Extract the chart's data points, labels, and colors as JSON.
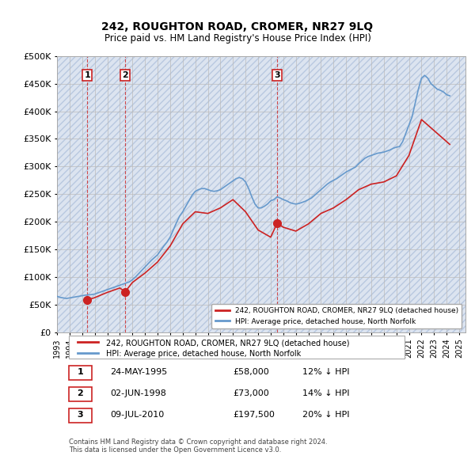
{
  "title": "242, ROUGHTON ROAD, CROMER, NR27 9LQ",
  "subtitle": "Price paid vs. HM Land Registry's House Price Index (HPI)",
  "ylabel_ticks": [
    "£0",
    "£50K",
    "£100K",
    "£150K",
    "£200K",
    "£250K",
    "£300K",
    "£350K",
    "£400K",
    "£450K",
    "£500K"
  ],
  "ytick_values": [
    0,
    50000,
    100000,
    150000,
    200000,
    250000,
    300000,
    350000,
    400000,
    450000,
    500000
  ],
  "xlim_start": 1993.0,
  "xlim_end": 2025.5,
  "ylim_min": 0,
  "ylim_max": 500000,
  "sale_points": [
    {
      "date_year": 1995.4,
      "price": 58000,
      "label": "1"
    },
    {
      "date_year": 1998.42,
      "price": 73000,
      "label": "2"
    },
    {
      "date_year": 2010.52,
      "price": 197500,
      "label": "3"
    }
  ],
  "hpi_line_color": "#6699cc",
  "sale_line_color": "#cc2222",
  "background_hatch_color": "#d0d8e8",
  "grid_color": "#bbbbbb",
  "legend_entry1": "242, ROUGHTON ROAD, CROMER, NR27 9LQ (detached house)",
  "legend_entry2": "HPI: Average price, detached house, North Norfolk",
  "table_data": [
    [
      "1",
      "24-MAY-1995",
      "£58,000",
      "12% ↓ HPI"
    ],
    [
      "2",
      "02-JUN-1998",
      "£73,000",
      "14% ↓ HPI"
    ],
    [
      "3",
      "09-JUL-2010",
      "£197,500",
      "20% ↓ HPI"
    ]
  ],
  "footer": "Contains HM Land Registry data © Crown copyright and database right 2024.\nThis data is licensed under the Open Government Licence v3.0.",
  "hpi_data": {
    "years": [
      1993.0,
      1993.25,
      1993.5,
      1993.75,
      1994.0,
      1994.25,
      1994.5,
      1994.75,
      1995.0,
      1995.25,
      1995.5,
      1995.75,
      1996.0,
      1996.25,
      1996.5,
      1996.75,
      1997.0,
      1997.25,
      1997.5,
      1997.75,
      1998.0,
      1998.25,
      1998.5,
      1998.75,
      1999.0,
      1999.25,
      1999.5,
      1999.75,
      2000.0,
      2000.25,
      2000.5,
      2000.75,
      2001.0,
      2001.25,
      2001.5,
      2001.75,
      2002.0,
      2002.25,
      2002.5,
      2002.75,
      2003.0,
      2003.25,
      2003.5,
      2003.75,
      2004.0,
      2004.25,
      2004.5,
      2004.75,
      2005.0,
      2005.25,
      2005.5,
      2005.75,
      2006.0,
      2006.25,
      2006.5,
      2006.75,
      2007.0,
      2007.25,
      2007.5,
      2007.75,
      2008.0,
      2008.25,
      2008.5,
      2008.75,
      2009.0,
      2009.25,
      2009.5,
      2009.75,
      2010.0,
      2010.25,
      2010.5,
      2010.75,
      2011.0,
      2011.25,
      2011.5,
      2011.75,
      2012.0,
      2012.25,
      2012.5,
      2012.75,
      2013.0,
      2013.25,
      2013.5,
      2013.75,
      2014.0,
      2014.25,
      2014.5,
      2014.75,
      2015.0,
      2015.25,
      2015.5,
      2015.75,
      2016.0,
      2016.25,
      2016.5,
      2016.75,
      2017.0,
      2017.25,
      2017.5,
      2017.75,
      2018.0,
      2018.25,
      2018.5,
      2018.75,
      2019.0,
      2019.25,
      2019.5,
      2019.75,
      2020.0,
      2020.25,
      2020.5,
      2020.75,
      2021.0,
      2021.25,
      2021.5,
      2021.75,
      2022.0,
      2022.25,
      2022.5,
      2022.75,
      2023.0,
      2023.25,
      2023.5,
      2023.75,
      2024.0,
      2024.25
    ],
    "values": [
      65000,
      63000,
      62000,
      61000,
      62000,
      63000,
      64000,
      65000,
      66000,
      67000,
      67500,
      68000,
      69000,
      71000,
      73000,
      75000,
      77000,
      79000,
      81000,
      83000,
      85000,
      87000,
      89000,
      91000,
      95000,
      100000,
      106000,
      112000,
      118000,
      124000,
      130000,
      135000,
      140000,
      148000,
      156000,
      163000,
      172000,
      185000,
      198000,
      210000,
      218000,
      228000,
      238000,
      248000,
      255000,
      258000,
      260000,
      260000,
      258000,
      256000,
      255000,
      256000,
      258000,
      262000,
      266000,
      270000,
      274000,
      278000,
      280000,
      278000,
      272000,
      260000,
      245000,
      232000,
      225000,
      225000,
      228000,
      232000,
      238000,
      240000,
      245000,
      243000,
      240000,
      238000,
      235000,
      233000,
      232000,
      233000,
      235000,
      237000,
      240000,
      243000,
      248000,
      253000,
      258000,
      263000,
      268000,
      272000,
      275000,
      278000,
      282000,
      286000,
      290000,
      293000,
      296000,
      299000,
      305000,
      310000,
      315000,
      318000,
      320000,
      322000,
      324000,
      325000,
      326000,
      328000,
      330000,
      333000,
      335000,
      336000,
      345000,
      360000,
      375000,
      390000,
      415000,
      440000,
      460000,
      465000,
      460000,
      450000,
      445000,
      440000,
      438000,
      435000,
      430000,
      428000
    ]
  },
  "sale_line_data": {
    "years": [
      1995.4,
      1996.0,
      1997.0,
      1998.0,
      1998.42,
      1999.0,
      2000.0,
      2001.0,
      2002.0,
      2003.0,
      2004.0,
      2005.0,
      2006.0,
      2007.0,
      2008.0,
      2009.0,
      2010.0,
      2010.52,
      2011.0,
      2012.0,
      2013.0,
      2014.0,
      2015.0,
      2016.0,
      2017.0,
      2018.0,
      2019.0,
      2020.0,
      2021.0,
      2022.0,
      2023.0,
      2024.0,
      2024.25
    ],
    "values": [
      58000,
      62500,
      72000,
      80000,
      73000,
      90000,
      107000,
      127000,
      156000,
      196000,
      218000,
      215000,
      225000,
      240000,
      218000,
      185000,
      172000,
      197500,
      190000,
      183000,
      196000,
      215000,
      225000,
      240000,
      258000,
      268000,
      272000,
      283000,
      320000,
      385000,
      365000,
      345000,
      340000
    ]
  }
}
